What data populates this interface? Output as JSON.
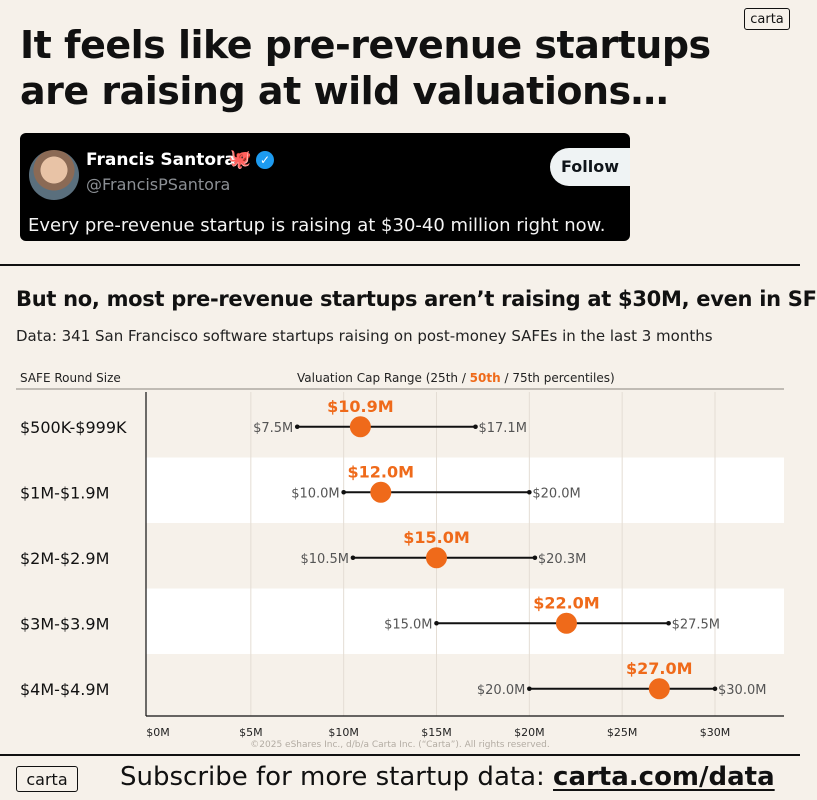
{
  "brand": {
    "logo_text": "carta"
  },
  "headline": "It feels like pre-revenue startups are raising at wild valuations…",
  "tweet": {
    "name": "Francis Santora",
    "emoji": "🐙",
    "verified_mark": "✓",
    "handle": "@FrancisPSantora",
    "follow_label": "Follow",
    "text": "Every pre-revenue startup is raising at $30-40 million right now."
  },
  "subhead": "But no, most pre-revenue startups aren’t raising at $30M, even in SF",
  "source": "Data: 341 San Francisco software startups raising on post-money SAFEs in the last 3 months",
  "columns": {
    "left": "SAFE Round Size",
    "right_prefix": "Valuation Cap Range (25th / ",
    "right_mid": "50th",
    "right_suffix": " / 75th percentiles)"
  },
  "chart_data": {
    "type": "range-dot",
    "unit": "$M",
    "xlim": [
      0,
      33
    ],
    "x_ticks": [
      0,
      5,
      10,
      15,
      20,
      25,
      30
    ],
    "x_tick_labels": [
      "$0M",
      "$5M",
      "$10M",
      "$15M",
      "$20M",
      "$25M",
      "$30M"
    ],
    "grid": true,
    "categories": [
      "$500K-$999K",
      "$1M-$1.9M",
      "$2M-$2.9M",
      "$3M-$3.9M",
      "$4M-$4.9M"
    ],
    "p25": [
      7.5,
      10.0,
      10.5,
      15.0,
      20.0
    ],
    "p50": [
      10.9,
      12.0,
      15.0,
      22.0,
      27.0
    ],
    "p75": [
      17.1,
      20.0,
      20.3,
      27.5,
      30.0
    ],
    "p25_labels": [
      "$7.5M",
      "$10.0M",
      "$10.5M",
      "$15.0M",
      "$20.0M"
    ],
    "p50_labels": [
      "$10.9M",
      "$12.0M",
      "$15.0M",
      "$22.0M",
      "$27.0M"
    ],
    "p75_labels": [
      "$17.1M",
      "$20.0M",
      "$20.3M",
      "$27.5M",
      "$30.0M"
    ],
    "colors": {
      "median": "#ef6a1a",
      "range": "#111111",
      "band": "#ffffff",
      "grid": "#e4ddd4"
    }
  },
  "copyright": "©2025 eShares Inc., d/b/a Carta Inc. (“Carta”). All rights reserved.",
  "footer": {
    "text": "Subscribe for more startup data: ",
    "url": "carta.com/data"
  }
}
